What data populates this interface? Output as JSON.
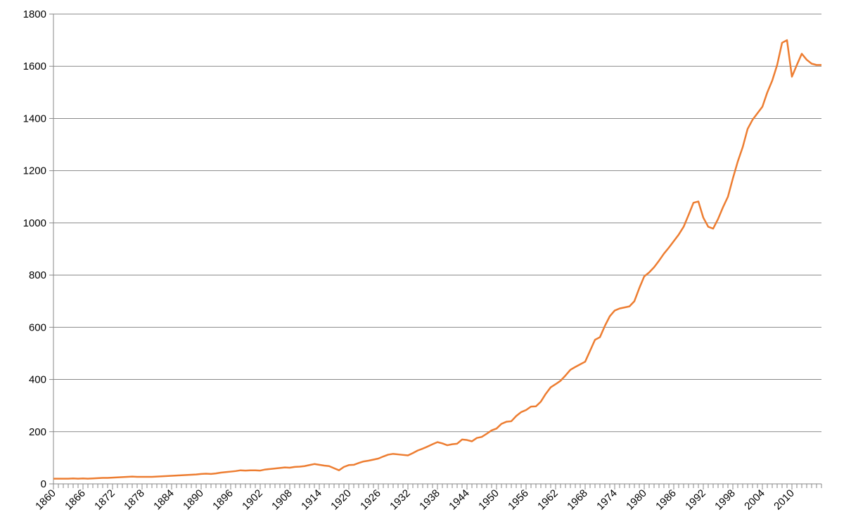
{
  "chart_data": {
    "type": "line",
    "x": [
      1860,
      1861,
      1862,
      1863,
      1864,
      1865,
      1866,
      1867,
      1868,
      1869,
      1870,
      1871,
      1872,
      1873,
      1874,
      1875,
      1876,
      1877,
      1878,
      1879,
      1880,
      1881,
      1882,
      1883,
      1884,
      1885,
      1886,
      1887,
      1888,
      1889,
      1890,
      1891,
      1892,
      1893,
      1894,
      1895,
      1896,
      1897,
      1898,
      1899,
      1900,
      1901,
      1902,
      1903,
      1904,
      1905,
      1906,
      1907,
      1908,
      1909,
      1910,
      1911,
      1912,
      1913,
      1914,
      1915,
      1916,
      1917,
      1918,
      1919,
      1920,
      1921,
      1922,
      1923,
      1924,
      1925,
      1926,
      1927,
      1928,
      1929,
      1930,
      1931,
      1932,
      1933,
      1934,
      1935,
      1936,
      1937,
      1938,
      1939,
      1940,
      1941,
      1942,
      1943,
      1944,
      1945,
      1946,
      1947,
      1948,
      1949,
      1950,
      1951,
      1952,
      1953,
      1954,
      1955,
      1956,
      1957,
      1958,
      1959,
      1960,
      1961,
      1962,
      1963,
      1964,
      1965,
      1966,
      1967,
      1968,
      1969,
      1970,
      1971,
      1972,
      1973,
      1974,
      1975,
      1976,
      1977,
      1978,
      1979,
      1980,
      1981,
      1982,
      1983,
      1984,
      1985,
      1986,
      1987,
      1988,
      1989,
      1990,
      1991,
      1992,
      1993,
      1994,
      1995,
      1996,
      1997,
      1998,
      1999,
      2000,
      2001,
      2002,
      2003,
      2004,
      2005,
      2006,
      2007,
      2008,
      2009,
      2010,
      2011,
      2012,
      2013,
      2014,
      2015,
      2016
    ],
    "series": [
      {
        "color": "#ed7d31",
        "values": [
          20,
          20,
          20,
          20,
          21,
          20,
          21,
          20,
          21,
          22,
          23,
          23,
          24,
          25,
          26,
          27,
          28,
          27,
          27,
          27,
          27,
          28,
          29,
          30,
          31,
          32,
          33,
          34,
          35,
          36,
          38,
          39,
          38,
          40,
          43,
          45,
          47,
          49,
          52,
          51,
          52,
          52,
          51,
          55,
          57,
          59,
          61,
          63,
          62,
          65,
          66,
          68,
          72,
          76,
          73,
          70,
          68,
          60,
          52,
          65,
          72,
          73,
          80,
          86,
          89,
          93,
          97,
          105,
          112,
          115,
          113,
          111,
          109,
          118,
          128,
          135,
          143,
          152,
          160,
          155,
          148,
          152,
          154,
          170,
          168,
          163,
          176,
          180,
          192,
          205,
          212,
          230,
          238,
          240,
          260,
          275,
          283,
          296,
          297,
          315,
          345,
          370,
          382,
          395,
          415,
          437,
          448,
          458,
          468,
          510,
          552,
          562,
          605,
          642,
          664,
          672,
          676,
          680,
          700,
          750,
          795,
          810,
          830,
          855,
          882,
          905,
          930,
          955,
          985,
          1030,
          1077,
          1082,
          1020,
          985,
          978,
          1015,
          1060,
          1100,
          1170,
          1235,
          1290,
          1360,
          1395,
          1420,
          1445,
          1500,
          1545,
          1605,
          1690,
          1700,
          1560,
          1605,
          1648,
          1625,
          1610,
          1605,
          1605
        ]
      }
    ],
    "xlim": [
      1860,
      2016
    ],
    "xticks": [
      1860,
      1866,
      1872,
      1878,
      1884,
      1890,
      1896,
      1902,
      1908,
      1914,
      1920,
      1926,
      1932,
      1938,
      1944,
      1950,
      1956,
      1962,
      1968,
      1974,
      1980,
      1986,
      1992,
      1998,
      2004,
      2010
    ],
    "ylim": [
      0,
      1800
    ],
    "yticks": [
      0,
      200,
      400,
      600,
      800,
      1000,
      1200,
      1400,
      1600,
      1800
    ],
    "grid": true
  }
}
